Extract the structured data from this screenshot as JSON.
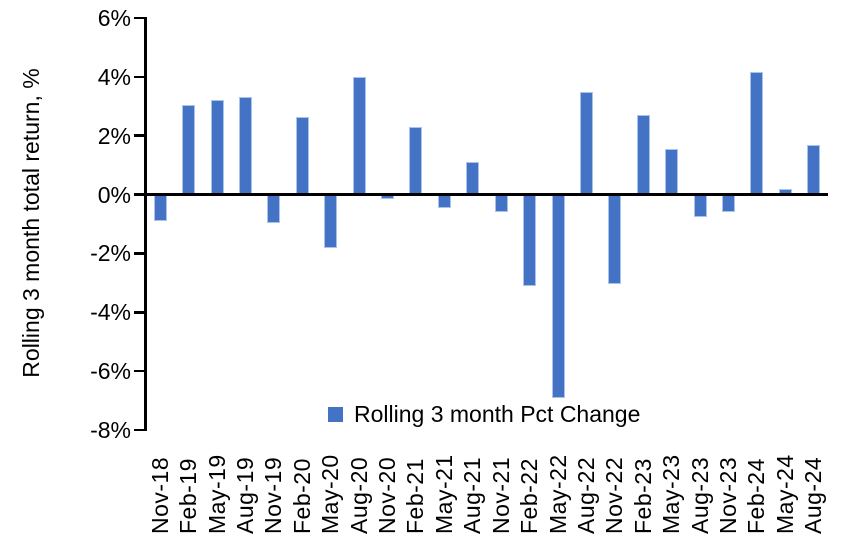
{
  "chart_data": {
    "type": "bar",
    "title": "",
    "ylabel": "Rolling 3 month total return, %",
    "xlabel": "",
    "legend_label": "Rolling 3 month Pct Change",
    "legend_position": "bottom-center",
    "grid": false,
    "categories": [
      "Nov-18",
      "Feb-19",
      "May-19",
      "Aug-19",
      "Nov-19",
      "Feb-20",
      "May-20",
      "Aug-20",
      "Nov-20",
      "Feb-21",
      "May-21",
      "Aug-21",
      "Nov-21",
      "Feb-22",
      "May-22",
      "Aug-22",
      "Nov-22",
      "Feb-23",
      "May-23",
      "Aug-23",
      "Nov-23",
      "Feb-24",
      "May-24",
      "Aug-24"
    ],
    "values": [
      -0.9,
      3.05,
      3.2,
      3.3,
      -0.95,
      2.65,
      -1.8,
      4.0,
      -0.15,
      2.3,
      -0.45,
      1.1,
      -0.6,
      -3.1,
      -6.9,
      3.5,
      -3.05,
      2.7,
      1.55,
      -0.75,
      -0.6,
      4.15,
      0.2,
      1.7
    ],
    "ylim": [
      -8,
      6
    ],
    "yticks": {
      "values": [
        6,
        4,
        2,
        0,
        -2,
        -4,
        -6,
        -8
      ],
      "labels": [
        "6%",
        "4%",
        "2%",
        "0%",
        "-2%",
        "-4%",
        "-6%",
        "-8%"
      ]
    },
    "colors": {
      "bar_fill": "#4472C4",
      "bar_border": "#A9C4EA",
      "axis": "#000000",
      "text": "#000000",
      "background": "#FFFFFF"
    }
  }
}
